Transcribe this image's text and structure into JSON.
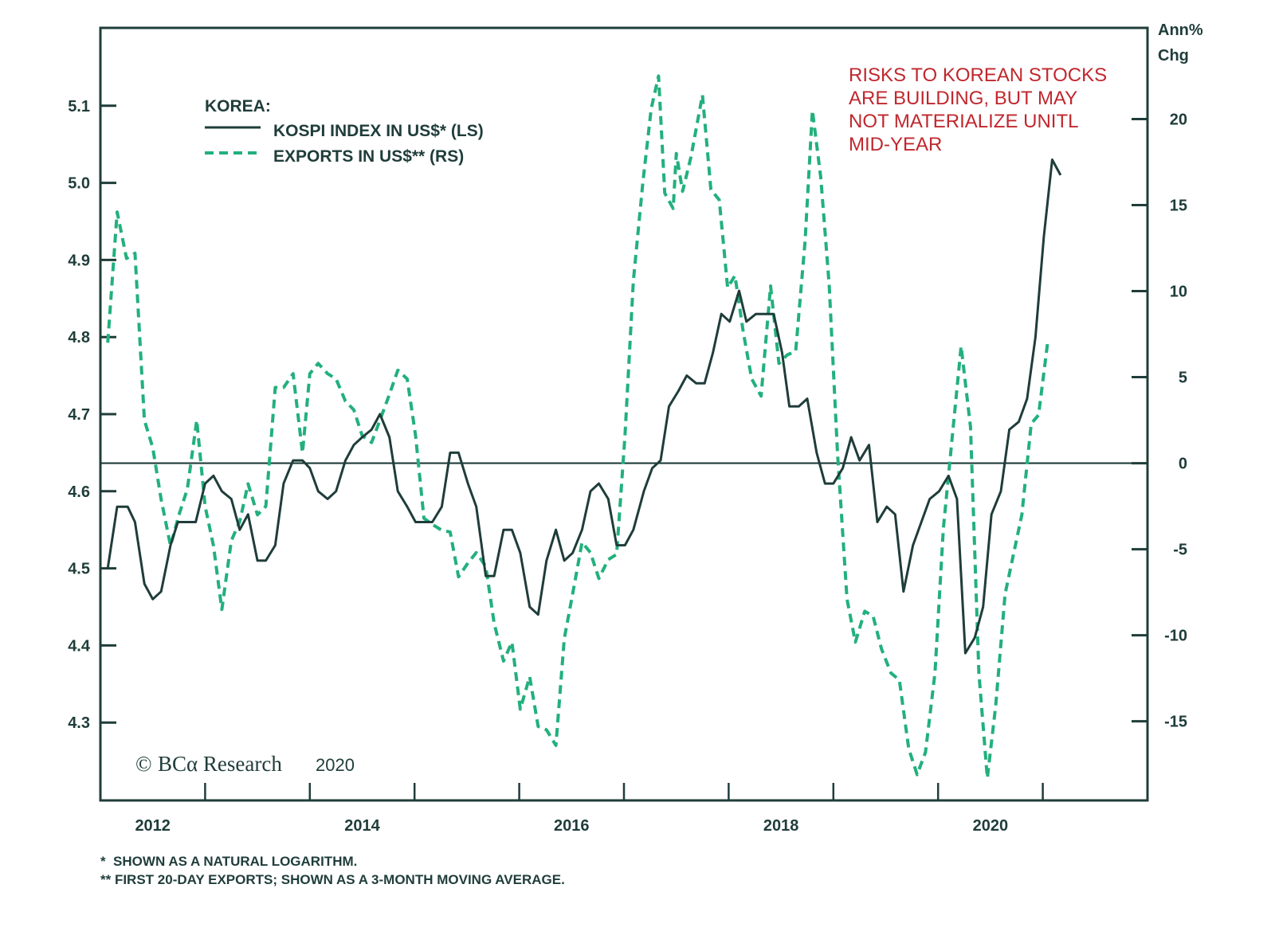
{
  "chart_data": {
    "type": "line",
    "title": "",
    "legend_title": "KOREA:",
    "legend_position": "top-left",
    "annotation": [
      "RISKS TO KOREAN STOCKS",
      "ARE BUILDING, BUT MAY",
      "NOT MATERIALIZE UNITL",
      "MID-YEAR"
    ],
    "y_left": {
      "label": "",
      "ticks": [
        "5.1",
        "5.0",
        "4.9",
        "4.8",
        "4.7",
        "4.6",
        "4.5",
        "4.4",
        "4.3"
      ],
      "tick_values": [
        5.1,
        5.0,
        4.9,
        4.8,
        4.7,
        4.6,
        4.5,
        4.4,
        4.3
      ],
      "range": [
        4.199,
        5.201
      ]
    },
    "y_right": {
      "label": [
        "Ann%",
        "Chg"
      ],
      "ticks": [
        "20",
        "15",
        "10",
        "5",
        "0",
        "-5",
        "-10",
        "-15"
      ],
      "tick_values": [
        20,
        15,
        10,
        5,
        0,
        -5,
        -10,
        -15
      ],
      "range": [
        -19.6,
        25.3
      ]
    },
    "x_axis": {
      "labels": [
        "2012",
        "2014",
        "2016",
        "2018",
        "2020"
      ],
      "label_values": [
        2012.5,
        2014.5,
        2016.5,
        2018.5,
        2020.5
      ],
      "tick_values": [
        2013,
        2014,
        2015,
        2016,
        2017,
        2018,
        2019,
        2020,
        2021
      ],
      "range": [
        2012.0,
        2022.0
      ]
    },
    "zero_line_right": 0,
    "series": [
      {
        "name": "KOSPI INDEX IN US$* (LS)",
        "axis": "left",
        "style": "solid",
        "color": "#1f3d3a",
        "x": [
          2012.07,
          2012.16,
          2012.26,
          2012.33,
          2012.42,
          2012.5,
          2012.58,
          2012.67,
          2012.74,
          2012.83,
          2012.91,
          2013.0,
          2013.08,
          2013.16,
          2013.25,
          2013.33,
          2013.41,
          2013.5,
          2013.58,
          2013.67,
          2013.75,
          2013.84,
          2013.93,
          2014.0,
          2014.08,
          2014.17,
          2014.25,
          2014.34,
          2014.42,
          2014.5,
          2014.59,
          2014.67,
          2014.76,
          2014.84,
          2014.93,
          2015.01,
          2015.09,
          2015.17,
          2015.26,
          2015.34,
          2015.42,
          2015.51,
          2015.59,
          2015.68,
          2015.76,
          2015.85,
          2015.93,
          2016.01,
          2016.1,
          2016.18,
          2016.26,
          2016.35,
          2016.43,
          2016.51,
          2016.6,
          2016.68,
          2016.76,
          2016.85,
          2016.93,
          2017.01,
          2017.09,
          2017.19,
          2017.27,
          2017.35,
          2017.43,
          2017.52,
          2017.6,
          2017.69,
          2017.77,
          2017.85,
          2017.93,
          2018.01,
          2018.1,
          2018.17,
          2018.26,
          2018.34,
          2018.43,
          2018.51,
          2018.58,
          2018.67,
          2018.75,
          2018.84,
          2018.92,
          2019.0,
          2019.09,
          2019.17,
          2019.25,
          2019.34,
          2019.42,
          2019.51,
          2019.59,
          2019.67,
          2019.76,
          2019.84,
          2019.92,
          2020.01,
          2020.1,
          2020.18,
          2020.26,
          2020.35,
          2020.43,
          2020.51,
          2020.6,
          2020.68,
          2020.77,
          2020.85,
          2020.93,
          2021.01,
          2021.09,
          2021.17
        ],
        "y": [
          4.5,
          4.58,
          4.58,
          4.56,
          4.48,
          4.46,
          4.47,
          4.53,
          4.56,
          4.56,
          4.56,
          4.61,
          4.62,
          4.6,
          4.59,
          4.55,
          4.57,
          4.51,
          4.51,
          4.53,
          4.61,
          4.64,
          4.64,
          4.63,
          4.6,
          4.59,
          4.6,
          4.64,
          4.66,
          4.67,
          4.68,
          4.7,
          4.67,
          4.6,
          4.58,
          4.56,
          4.56,
          4.56,
          4.58,
          4.65,
          4.65,
          4.61,
          4.58,
          4.49,
          4.49,
          4.55,
          4.55,
          4.52,
          4.45,
          4.44,
          4.51,
          4.55,
          4.51,
          4.52,
          4.55,
          4.6,
          4.61,
          4.59,
          4.53,
          4.53,
          4.55,
          4.6,
          4.63,
          4.64,
          4.71,
          4.73,
          4.75,
          4.74,
          4.74,
          4.78,
          4.83,
          4.82,
          4.86,
          4.82,
          4.83,
          4.83,
          4.83,
          4.78,
          4.71,
          4.71,
          4.72,
          4.65,
          4.61,
          4.61,
          4.63,
          4.67,
          4.64,
          4.66,
          4.56,
          4.58,
          4.57,
          4.47,
          4.53,
          4.56,
          4.59,
          4.6,
          4.62,
          4.59,
          4.39,
          4.41,
          4.45,
          4.57,
          4.6,
          4.68,
          4.69,
          4.72,
          4.8,
          4.93,
          5.03,
          5.01
        ]
      },
      {
        "name": "EXPORTS IN US$** (RS)",
        "axis": "right",
        "style": "dashed",
        "color": "#22b07d",
        "x": [
          2012.07,
          2012.16,
          2012.25,
          2012.33,
          2012.42,
          2012.5,
          2012.58,
          2012.67,
          2012.75,
          2012.83,
          2012.92,
          2013.0,
          2013.08,
          2013.16,
          2013.25,
          2013.33,
          2013.41,
          2013.5,
          2013.58,
          2013.67,
          2013.75,
          2013.84,
          2013.93,
          2014.0,
          2014.08,
          2014.17,
          2014.25,
          2014.34,
          2014.42,
          2014.5,
          2014.59,
          2014.67,
          2014.76,
          2014.84,
          2014.93,
          2015.01,
          2015.09,
          2015.18,
          2015.26,
          2015.34,
          2015.42,
          2015.51,
          2015.59,
          2015.68,
          2015.76,
          2015.85,
          2015.93,
          2016.01,
          2016.1,
          2016.18,
          2016.26,
          2016.35,
          2016.43,
          2016.51,
          2016.6,
          2016.68,
          2016.76,
          2016.85,
          2016.93,
          2017.01,
          2017.09,
          2017.18,
          2017.26,
          2017.33,
          2017.39,
          2017.47,
          2017.5,
          2017.56,
          2017.64,
          2017.71,
          2017.75,
          2017.83,
          2017.91,
          2017.99,
          2018.06,
          2018.14,
          2018.22,
          2018.31,
          2018.4,
          2018.48,
          2018.56,
          2018.64,
          2018.73,
          2018.8,
          2018.88,
          2018.96,
          2019.04,
          2019.13,
          2019.21,
          2019.3,
          2019.38,
          2019.46,
          2019.55,
          2019.63,
          2019.72,
          2019.8,
          2019.88,
          2019.97,
          2020.05,
          2020.13,
          2020.22,
          2020.31,
          2020.39,
          2020.47,
          2020.55,
          2020.64,
          2020.72,
          2020.8,
          2020.89,
          2020.96,
          2021.05
        ],
        "y": [
          7.0,
          14.6,
          11.9,
          12.2,
          2.5,
          0.9,
          -2.1,
          -4.8,
          -3.0,
          -1.5,
          2.5,
          -2.5,
          -4.8,
          -8.5,
          -4.5,
          -3.4,
          -1.2,
          -3.0,
          -2.5,
          4.4,
          4.4,
          5.2,
          0.6,
          5.2,
          5.8,
          5.2,
          4.9,
          3.6,
          3.1,
          1.6,
          1.2,
          2.5,
          4.0,
          5.4,
          4.9,
          1.6,
          -3.2,
          -3.6,
          -3.9,
          -4.0,
          -6.6,
          -5.8,
          -5.2,
          -6.0,
          -9.3,
          -11.5,
          -10.4,
          -14.3,
          -12.4,
          -15.3,
          -15.5,
          -16.4,
          -10.2,
          -7.6,
          -4.6,
          -5.2,
          -6.7,
          -5.6,
          -5.3,
          1.6,
          10.6,
          16.3,
          20.6,
          22.5,
          15.7,
          14.8,
          18.0,
          15.8,
          17.8,
          20.1,
          21.4,
          15.9,
          15.3,
          10.2,
          10.9,
          7.6,
          4.9,
          3.9,
          10.3,
          5.8,
          6.3,
          6.5,
          12.9,
          20.5,
          16.6,
          10.4,
          0.5,
          -7.9,
          -10.4,
          -8.6,
          -8.9,
          -10.8,
          -12.2,
          -12.6,
          -16.6,
          -18.1,
          -16.8,
          -12.2,
          -3.8,
          1.2,
          6.8,
          2.1,
          -12.2,
          -18.3,
          -14.1,
          -7.6,
          -5.3,
          -3.0,
          2.3,
          2.8,
          7.2
        ]
      }
    ]
  },
  "labels": {
    "right_axis_title_line1": "Ann%",
    "right_axis_title_line2": "Chg",
    "legend_title": "KOREA:",
    "legend_kospi": "KOSPI INDEX IN US$* (LS)",
    "legend_exports": "EXPORTS IN US$** (RS)",
    "annotation_lines": [
      "RISKS TO KOREAN STOCKS",
      "ARE BUILDING, BUT MAY",
      "NOT MATERIALIZE UNITL",
      "MID-YEAR"
    ],
    "copyright_symbol": "©",
    "copyright_brand": "BCα Research",
    "copyright_year": "2020",
    "footnote_1": "*  SHOWN AS A NATURAL LOGARITHM.",
    "footnote_2": "** FIRST 20-DAY EXPORTS; SHOWN AS A 3-MONTH MOVING AVERAGE."
  },
  "colors": {
    "frame": "#1f3d3a",
    "kospi_line": "#1f3d3a",
    "exports_line": "#22b07d",
    "annotation": "#c0272d"
  }
}
